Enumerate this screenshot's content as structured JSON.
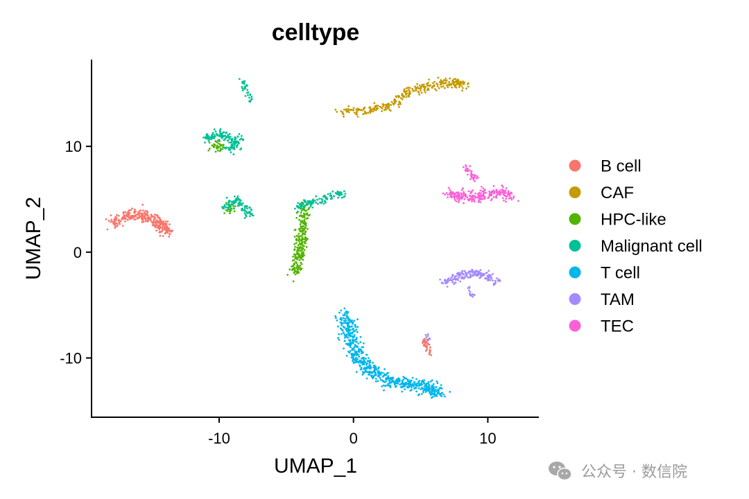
{
  "chart_data": {
    "type": "scatter",
    "title": "celltype",
    "xlabel": "UMAP_1",
    "ylabel": "UMAP_2",
    "xlim": [
      -19.5,
      13.8
    ],
    "ylim": [
      -15.6,
      18.2
    ],
    "xticks": [
      -10,
      0,
      10
    ],
    "xtick_labels": [
      "-10",
      "0",
      "10"
    ],
    "yticks": [
      -10,
      0,
      10
    ],
    "ytick_labels": [
      "-10",
      "0",
      "10"
    ],
    "grid": false,
    "legend_position": "right",
    "series": [
      {
        "name": "B cell",
        "color": "#F8766D",
        "clusters": [
          {
            "path": [
              [
                -18,
                2.8
              ],
              [
                -17,
                3.4
              ],
              [
                -16,
                3.6
              ],
              [
                -15,
                3.2
              ],
              [
                -14.3,
                2.5
              ],
              [
                -13.7,
                1.9
              ]
            ],
            "spread": 0.6,
            "n": 300
          },
          {
            "path": [
              [
                5.2,
                -8.2
              ],
              [
                5.4,
                -8.8
              ],
              [
                5.6,
                -9.6
              ]
            ],
            "spread": 0.3,
            "n": 40
          }
        ]
      },
      {
        "name": "CAF",
        "color": "#C49A00",
        "clusters": [
          {
            "path": [
              [
                -1,
                13.2
              ],
              [
                1,
                13.4
              ],
              [
                2.5,
                13.8
              ],
              [
                4,
                15
              ],
              [
                5.5,
                15.8
              ],
              [
                7,
                16
              ],
              [
                8.2,
                15.9
              ]
            ],
            "spread": 0.5,
            "n": 320
          }
        ]
      },
      {
        "name": "HPC-like",
        "color": "#53B400",
        "clusters": [
          {
            "path": [
              [
                -4.3,
                -2
              ],
              [
                -4.1,
                -0.5
              ],
              [
                -3.9,
                1
              ],
              [
                -3.8,
                2.5
              ],
              [
                -3.6,
                4.5
              ]
            ],
            "spread": 0.5,
            "n": 260
          },
          {
            "path": [
              [
                -10.5,
                10.2
              ],
              [
                -9.8,
                9.8
              ]
            ],
            "spread": 0.5,
            "n": 35
          },
          {
            "path": [
              [
                -9.5,
                3.8
              ],
              [
                -9,
                4.3
              ]
            ],
            "spread": 0.4,
            "n": 20
          }
        ]
      },
      {
        "name": "Malignant cell",
        "color": "#00C094",
        "clusters": [
          {
            "path": [
              [
                -11,
                10.8
              ],
              [
                -10,
                11
              ],
              [
                -9,
                10.8
              ],
              [
                -8.5,
                10.3
              ],
              [
                -9.6,
                9.6
              ]
            ],
            "spread": 0.55,
            "n": 150
          },
          {
            "path": [
              [
                -9.6,
                4.2
              ],
              [
                -8.8,
                4.9
              ],
              [
                -8.2,
                4.4
              ],
              [
                -7.8,
                3.4
              ]
            ],
            "spread": 0.5,
            "n": 100
          },
          {
            "path": [
              [
                -8.2,
                16.2
              ],
              [
                -8,
                15.2
              ],
              [
                -7.6,
                14.3
              ]
            ],
            "spread": 0.25,
            "n": 35
          },
          {
            "path": [
              [
                -4.3,
                4.2
              ],
              [
                -3.5,
                4.6
              ],
              [
                -2.3,
                4.9
              ],
              [
                -1.3,
                5.4
              ],
              [
                -0.8,
                5.6
              ]
            ],
            "spread": 0.4,
            "n": 110
          }
        ]
      },
      {
        "name": "T cell",
        "color": "#00B6EB",
        "clusters": [
          {
            "path": [
              [
                -0.6,
                -6
              ],
              [
                -0.4,
                -7.5
              ],
              [
                0.2,
                -9.5
              ],
              [
                1,
                -11
              ],
              [
                2.5,
                -12
              ],
              [
                4,
                -12.5
              ],
              [
                5.5,
                -12.8
              ],
              [
                6.3,
                -13.1
              ]
            ],
            "spread": 0.75,
            "n": 650
          }
        ]
      },
      {
        "name": "TAM",
        "color": "#A58AFF",
        "clusters": [
          {
            "path": [
              [
                6.8,
                -2.9
              ],
              [
                7.8,
                -2.3
              ],
              [
                8.8,
                -1.9
              ],
              [
                9.7,
                -2.1
              ],
              [
                10.8,
                -2.9
              ]
            ],
            "spread": 0.45,
            "n": 170
          },
          {
            "path": [
              [
                8.6,
                -3.3
              ],
              [
                8.8,
                -4.2
              ]
            ],
            "spread": 0.2,
            "n": 15
          },
          {
            "path": [
              [
                5.5,
                -7.6
              ],
              [
                5.6,
                -8.4
              ]
            ],
            "spread": 0.2,
            "n": 10
          }
        ]
      },
      {
        "name": "TEC",
        "color": "#FB61D7",
        "clusters": [
          {
            "path": [
              [
                7,
                5.6
              ],
              [
                8,
                5.3
              ],
              [
                9,
                5.3
              ],
              [
                10,
                5.4
              ],
              [
                11,
                5.8
              ],
              [
                11.8,
                5.2
              ]
            ],
            "spread": 0.55,
            "n": 230
          },
          {
            "path": [
              [
                8.3,
                8
              ],
              [
                8.7,
                7.5
              ],
              [
                9.1,
                6.9
              ]
            ],
            "spread": 0.3,
            "n": 40
          }
        ]
      }
    ]
  },
  "watermark": {
    "icon": "wechat-icon",
    "text": "公众号 · 数信院"
  }
}
